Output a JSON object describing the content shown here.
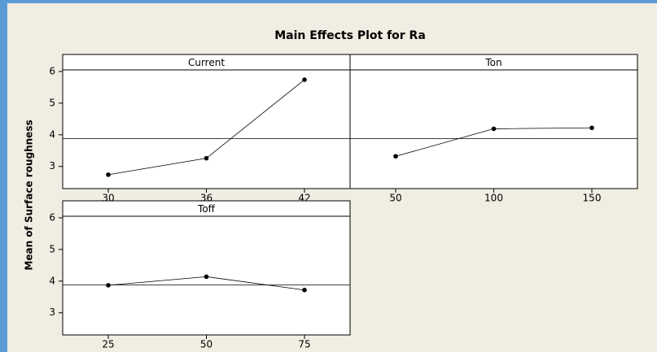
{
  "title": "Main Effects Plot for Ra",
  "ylabel": "Mean of Surface roughness",
  "chart_data": [
    {
      "type": "line",
      "title": "Current",
      "categories": [
        "30",
        "36",
        "42"
      ],
      "values": [
        2.74,
        3.26,
        5.74
      ],
      "color": "#000000",
      "reference_line": 3.88,
      "ylim": [
        2.3,
        6.05
      ],
      "yticks": [
        3,
        4,
        5,
        6
      ]
    },
    {
      "type": "line",
      "title": "Ton",
      "categories": [
        "50",
        "100",
        "150"
      ],
      "values": [
        3.32,
        4.19,
        4.22
      ],
      "color": "#000000",
      "reference_line": 3.88,
      "ylim": [
        2.3,
        6.05
      ]
    },
    {
      "type": "line",
      "title": "Toff",
      "categories": [
        "25",
        "50",
        "75"
      ],
      "values": [
        3.87,
        4.14,
        3.72
      ],
      "color": "#000000",
      "reference_line": 3.88,
      "ylim": [
        2.3,
        6.05
      ],
      "yticks": [
        3,
        4,
        5,
        6
      ]
    }
  ]
}
